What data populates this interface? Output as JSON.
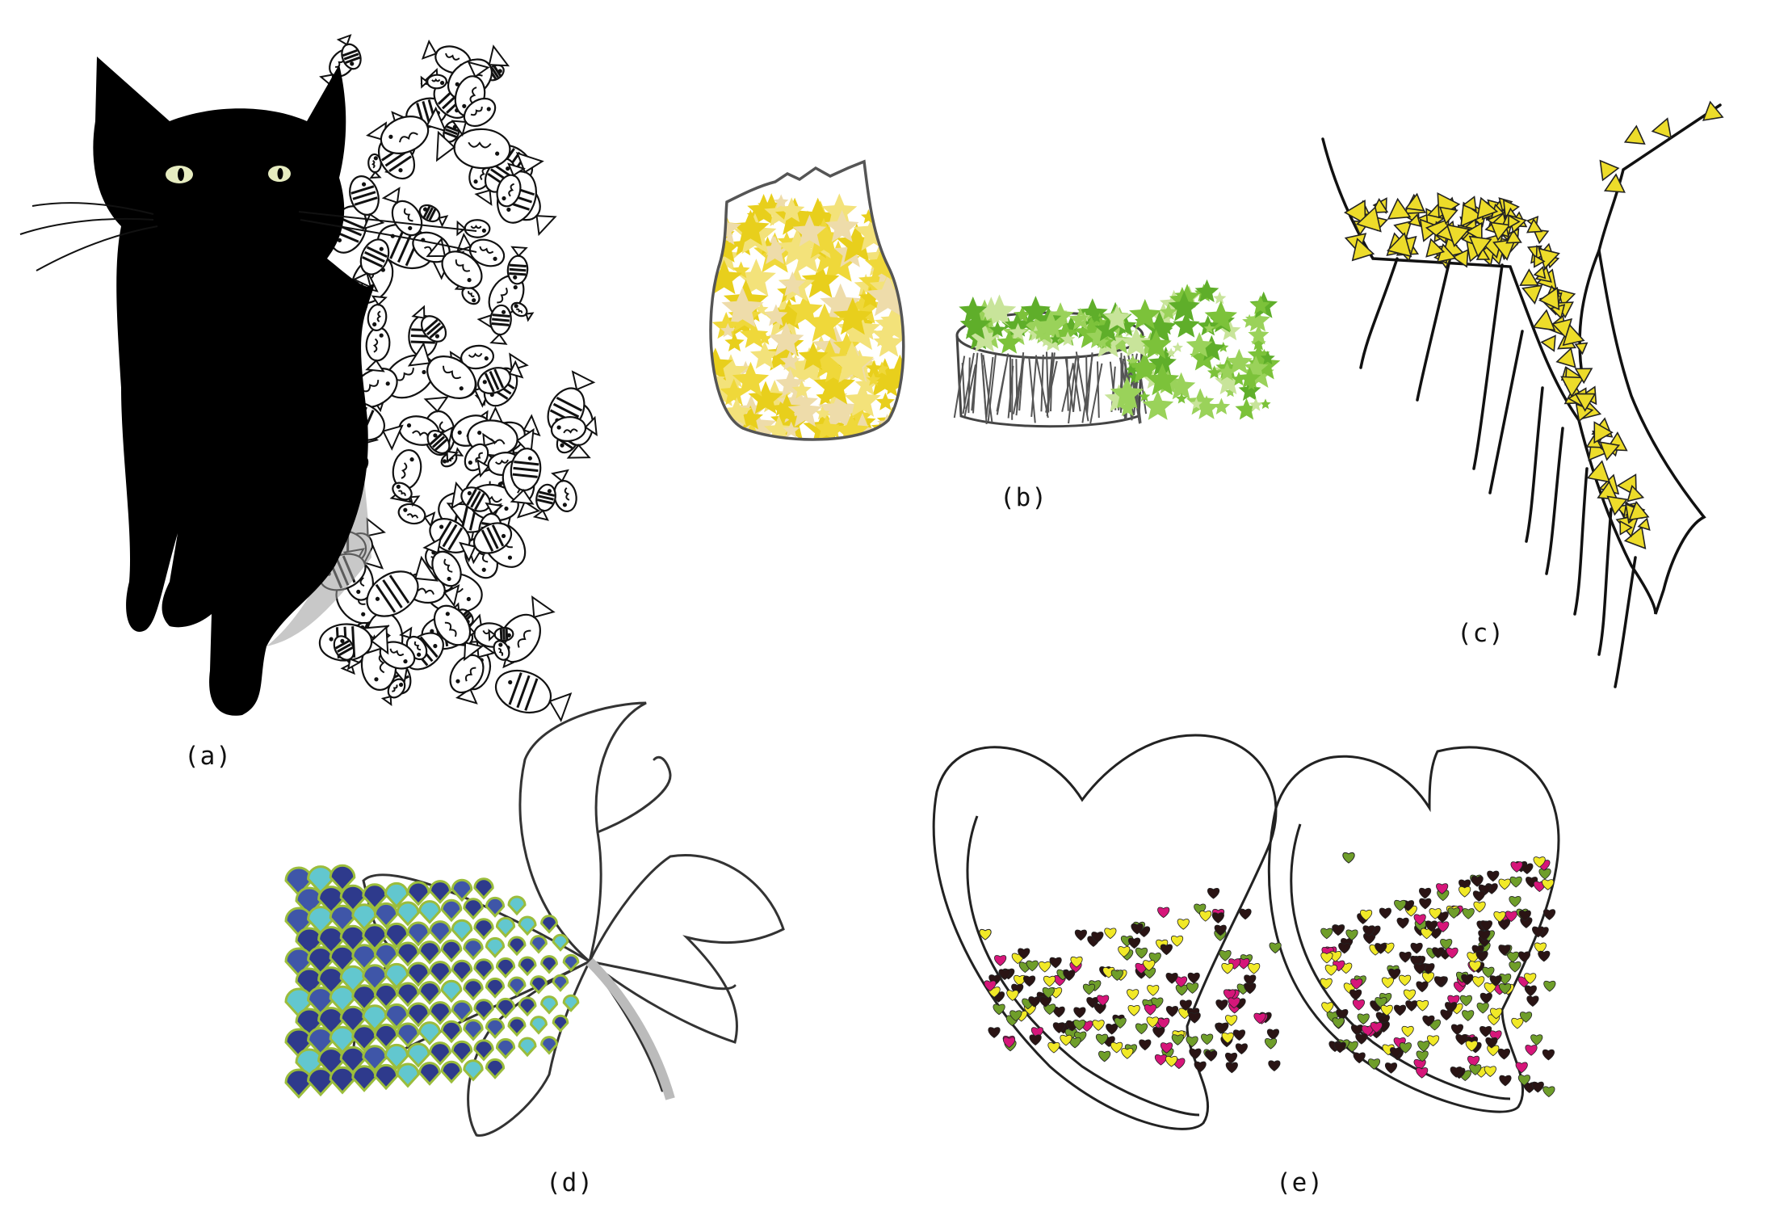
{
  "panels": [
    {
      "id": "a",
      "caption": "(a)"
    },
    {
      "id": "b",
      "caption": "(b)"
    },
    {
      "id": "c",
      "caption": "(c)"
    },
    {
      "id": "d",
      "caption": "(d)"
    },
    {
      "id": "e",
      "caption": "(e)"
    }
  ],
  "colors": {
    "ink": "#111111",
    "cat": "#000000",
    "cat_eye": "#e6ecc0",
    "star_yellow": [
      "#e8cf1c",
      "#efd83a",
      "#f3e27a",
      "#eedcaa"
    ],
    "star_green": [
      "#7cc23a",
      "#9ad25a",
      "#c8e49a",
      "#5fae2a"
    ],
    "triangle_fill": "#eddc2a",
    "scale_dark": "#2e3a8c",
    "scale_mid": "#3f56a8",
    "scale_light": "#62c7cf",
    "scale_outline": "#9bbd3c",
    "heart_black": "#2a1414",
    "heart_pink": "#d6167a",
    "heart_yellow": "#f1e927",
    "heart_green": "#6f9e2a"
  },
  "icons": {
    "a": "black-cat-with-fish-doodles",
    "b": "star-filled-jar-and-bowl",
    "c": "triangle-filled-fold-sketch",
    "d": "flower-with-scale-pattern",
    "e": "two-hearts-filled-with-small-hearts"
  }
}
